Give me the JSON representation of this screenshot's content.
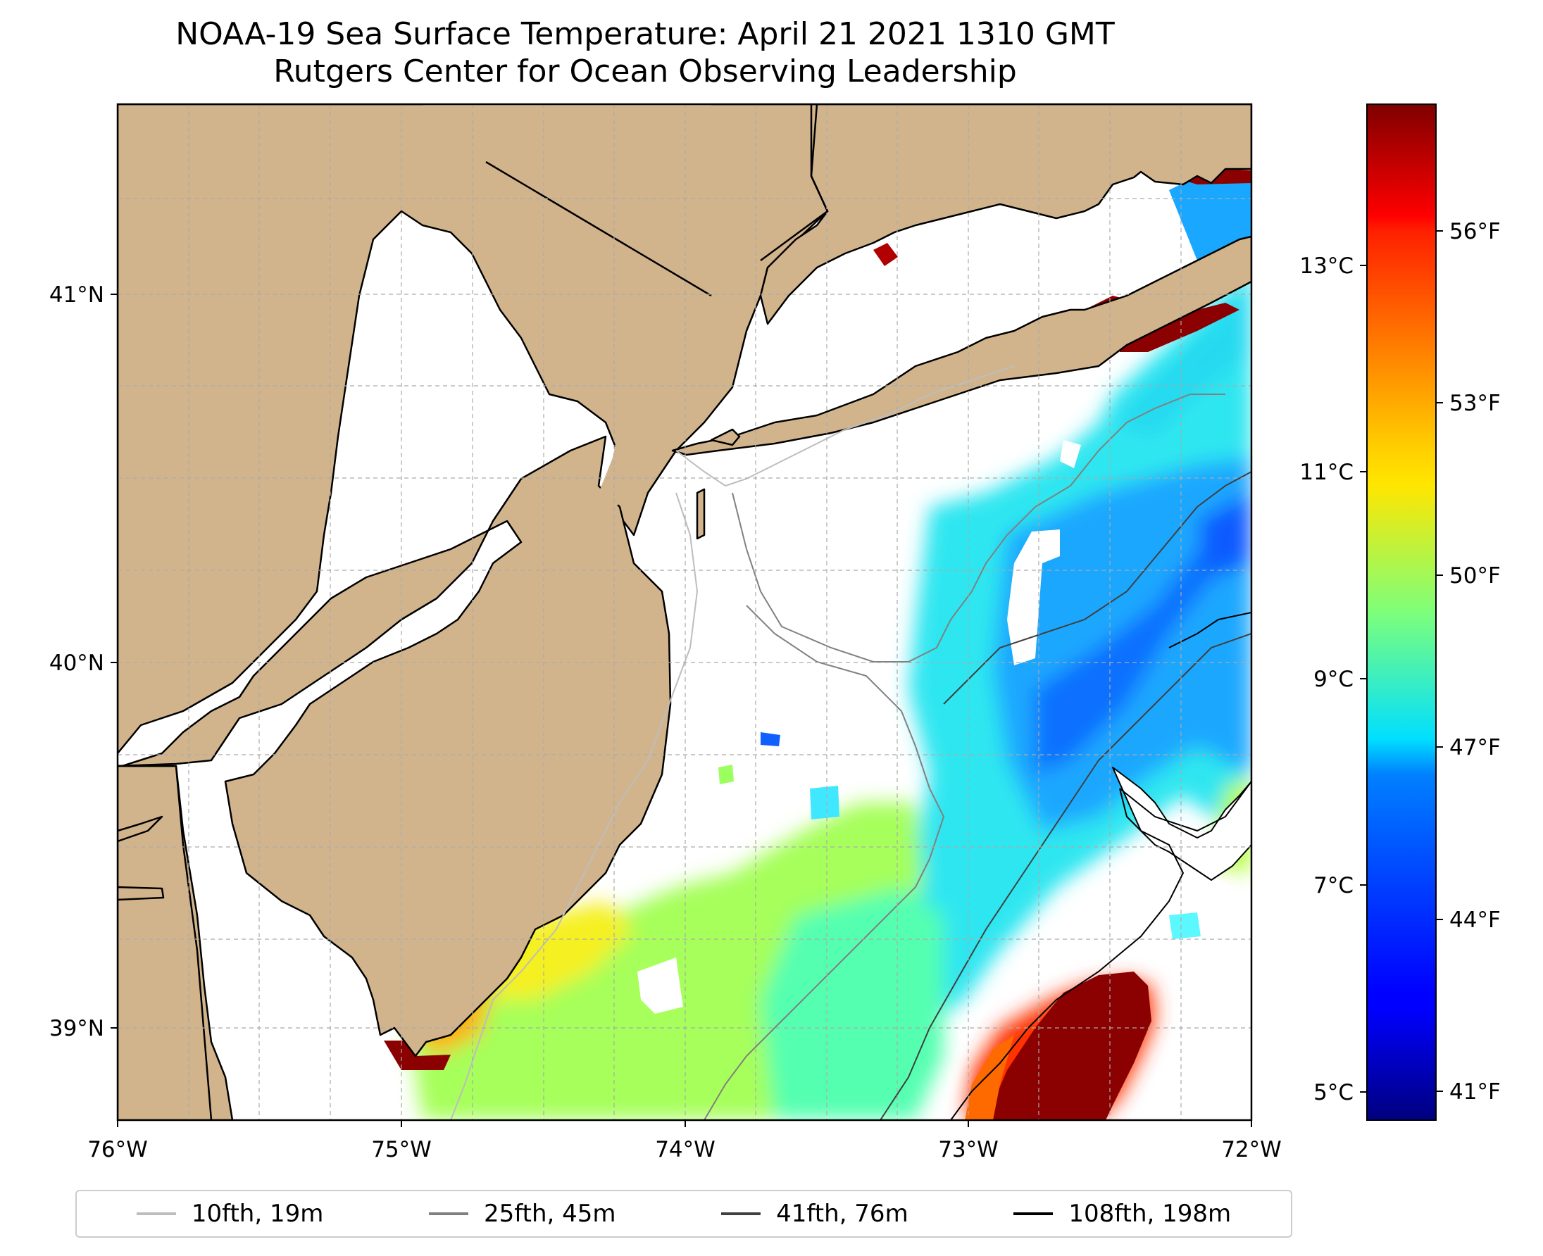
{
  "title": {
    "line1": "NOAA-19 Sea Surface Temperature: April 21 2021 1310 GMT",
    "line2": "Rutgers Center for Ocean Observing Leadership"
  },
  "map": {
    "extent": {
      "lon_min": -76,
      "lon_max": -72,
      "lat_min": 38.75,
      "lat_max": 41.55
    },
    "x_ticks": [
      "76°W",
      "75°W",
      "74°W",
      "73°W",
      "72°W"
    ],
    "y_ticks": [
      "41°N",
      "40°N",
      "39°N"
    ],
    "land_color": "#d2b48c",
    "grid": true
  },
  "colorbar": {
    "celsius_ticks": [
      "13°C",
      "11°C",
      "9°C",
      "7°C",
      "5°C"
    ],
    "fahrenheit_ticks": [
      "56°F",
      "53°F",
      "50°F",
      "47°F",
      "44°F",
      "41°F"
    ],
    "colormap": "jet",
    "range_f": [
      40.3,
      58.8
    ]
  },
  "legend": [
    {
      "label": "10fth, 19m",
      "color": "#bdbdbd"
    },
    {
      "label": "25fth, 45m",
      "color": "#808080"
    },
    {
      "label": "41fth, 76m",
      "color": "#404040"
    },
    {
      "label": "108fth, 198m",
      "color": "#000000"
    }
  ]
}
